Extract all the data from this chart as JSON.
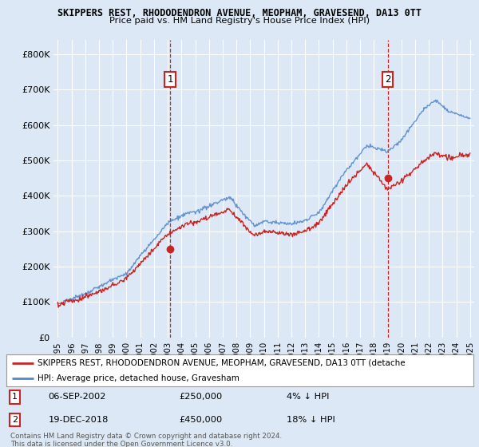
{
  "title1": "SKIPPERS REST, RHODODENDRON AVENUE, MEOPHAM, GRAVESEND, DA13 0TT",
  "title2": "Price paid vs. HM Land Registry's House Price Index (HPI)",
  "ylabel_ticks": [
    "£0",
    "£100K",
    "£200K",
    "£300K",
    "£400K",
    "£500K",
    "£600K",
    "£700K",
    "£800K"
  ],
  "ytick_values": [
    0,
    100000,
    200000,
    300000,
    400000,
    500000,
    600000,
    700000,
    800000
  ],
  "ylim": [
    0,
    840000
  ],
  "xlim_start": 1994.7,
  "xlim_end": 2025.3,
  "background_color": "#dce8f5",
  "plot_bg_color": "#dce8f5",
  "grid_color": "#ffffff",
  "hpi_color": "#5588cc",
  "price_color": "#cc2222",
  "marker1_x": 2003.18,
  "marker1_y": 250000,
  "marker2_x": 2019.0,
  "marker2_y": 450000,
  "annotation1": {
    "label": "1",
    "date": "06-SEP-2002",
    "price": "£250,000",
    "pct": "4% ↓ HPI"
  },
  "annotation2": {
    "label": "2",
    "date": "19-DEC-2018",
    "price": "£450,000",
    "pct": "18% ↓ HPI"
  },
  "legend_line1": "SKIPPERS REST, RHODODENDRON AVENUE, MEOPHAM, GRAVESEND, DA13 0TT (detache",
  "legend_line2": "HPI: Average price, detached house, Gravesham",
  "footnote": "Contains HM Land Registry data © Crown copyright and database right 2024.\nThis data is licensed under the Open Government Licence v3.0.",
  "xticks": [
    1995,
    1996,
    1997,
    1998,
    1999,
    2000,
    2001,
    2002,
    2003,
    2004,
    2005,
    2006,
    2007,
    2008,
    2009,
    2010,
    2011,
    2012,
    2013,
    2014,
    2015,
    2016,
    2017,
    2018,
    2019,
    2020,
    2021,
    2022,
    2023,
    2024,
    2025
  ]
}
